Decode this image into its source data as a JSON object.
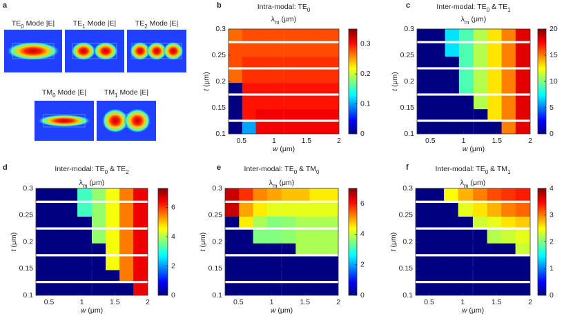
{
  "modes_panel": {
    "label": "a",
    "modes": [
      {
        "title": [
          {
            "text": "TE"
          },
          {
            "text": "0",
            "sub": true
          },
          {
            "text": " Mode |E|"
          }
        ]
      },
      {
        "title": [
          {
            "text": "TE"
          },
          {
            "text": "1",
            "sub": true
          },
          {
            "text": " Mode |E|"
          }
        ]
      },
      {
        "title": [
          {
            "text": "TE"
          },
          {
            "text": "2",
            "sub": true
          },
          {
            "text": " Mode |E|"
          }
        ]
      },
      {
        "title": [
          {
            "text": "TM"
          },
          {
            "text": "0",
            "sub": true
          },
          {
            "text": " Mode |E|"
          }
        ]
      },
      {
        "title": [
          {
            "text": "TM"
          },
          {
            "text": "1",
            "sub": true
          },
          {
            "text": " Mode |E|"
          }
        ]
      }
    ]
  },
  "chart_data": [
    {
      "type": "heatmap",
      "panel": "b",
      "colormap": "jet",
      "title": [
        {
          "text": "Intra-modal: TE"
        },
        {
          "text": "0",
          "sub": true
        }
      ],
      "colorbar_label": [
        {
          "text": "λ"
        },
        {
          "text": "m",
          "sub": true
        },
        {
          "text": " (μm)"
        }
      ],
      "xlabel": [
        {
          "text": "w",
          "italic": true
        },
        {
          "text": " (μm)"
        }
      ],
      "ylabel": [
        {
          "text": "t",
          "italic": true
        },
        {
          "text": " (μm)"
        }
      ],
      "x": [
        0.41,
        0.62,
        0.83,
        1.04,
        1.26,
        1.47,
        1.68,
        1.89
      ],
      "y": [
        0.11,
        0.14,
        0.16,
        0.19,
        0.21,
        0.24,
        0.26,
        0.29
      ],
      "z": [
        [
          0,
          0.1,
          0.31,
          0.31,
          0.31,
          0.31,
          0.31,
          0.31
        ],
        [
          0,
          0.3,
          0.31,
          0.31,
          0.31,
          0.31,
          0.31,
          0.31
        ],
        [
          0,
          0.3,
          0.3,
          0.3,
          0.3,
          0.3,
          0.3,
          0.3
        ],
        [
          0,
          0.3,
          0.3,
          0.3,
          0.3,
          0.3,
          0.3,
          0.3
        ],
        [
          0.27,
          0.29,
          0.29,
          0.29,
          0.29,
          0.29,
          0.29,
          0.29
        ],
        [
          0.28,
          0.29,
          0.29,
          0.29,
          0.29,
          0.29,
          0.29,
          0.29
        ],
        [
          0.28,
          0.28,
          0.28,
          0.28,
          0.28,
          0.28,
          0.28,
          0.28
        ],
        [
          0.27,
          0.28,
          0.28,
          0.28,
          0.28,
          0.28,
          0.28,
          0.28
        ]
      ],
      "xlim": [
        0.3,
        2
      ],
      "ylim": [
        0.1,
        0.3
      ],
      "xticks": [
        0.5,
        1,
        1.5,
        2
      ],
      "yticks": [
        0.1,
        0.15,
        0.2,
        0.25,
        0.3
      ],
      "clim": [
        0,
        0.35
      ],
      "cticks": [
        0,
        0.1,
        0.2,
        0.3
      ]
    },
    {
      "type": "heatmap",
      "panel": "c",
      "colormap": "jet",
      "title": [
        {
          "text": "Inter-modal: TE"
        },
        {
          "text": "0",
          "sub": true
        },
        {
          "text": " & TE"
        },
        {
          "text": "1",
          "sub": true
        }
      ],
      "colorbar_label": [
        {
          "text": "λ"
        },
        {
          "text": "m",
          "sub": true
        },
        {
          "text": " (μm)"
        }
      ],
      "xlabel": [
        {
          "text": "w",
          "italic": true
        },
        {
          "text": " (μm)"
        }
      ],
      "ylabel": [
        {
          "text": "t",
          "italic": true
        },
        {
          "text": " (μm)"
        }
      ],
      "x": [
        0.41,
        0.62,
        0.83,
        1.04,
        1.26,
        1.47,
        1.68,
        1.89
      ],
      "y": [
        0.11,
        0.14,
        0.16,
        0.19,
        0.21,
        0.24,
        0.26,
        0.29
      ],
      "z": [
        [
          0,
          0,
          0,
          0,
          0,
          0,
          15,
          18
        ],
        [
          0,
          0,
          0,
          0,
          0,
          13,
          15,
          18
        ],
        [
          0,
          0,
          0,
          0,
          11,
          13,
          15,
          18
        ],
        [
          0,
          0,
          0,
          9,
          11,
          13,
          15,
          18
        ],
        [
          0,
          0,
          0,
          9,
          11,
          13,
          15,
          18
        ],
        [
          0,
          0,
          0,
          9,
          11,
          13,
          15,
          18
        ],
        [
          0,
          0,
          7,
          9,
          11,
          13,
          15,
          18
        ],
        [
          0,
          0,
          7,
          9,
          11,
          13,
          15,
          18
        ]
      ],
      "xlim": [
        0.3,
        2
      ],
      "ylim": [
        0.1,
        0.3
      ],
      "xticks": [
        0.5,
        1,
        1.5,
        2
      ],
      "yticks": [
        0.1,
        0.15,
        0.2,
        0.25,
        0.3
      ],
      "clim": [
        0,
        20
      ],
      "cticks": [
        0,
        5,
        10,
        15,
        20
      ]
    },
    {
      "type": "heatmap",
      "panel": "d",
      "colormap": "jet",
      "title": [
        {
          "text": "Inter-modal: TE"
        },
        {
          "text": "0",
          "sub": true
        },
        {
          "text": " & TE"
        },
        {
          "text": "2",
          "sub": true
        }
      ],
      "colorbar_label": [
        {
          "text": "λ"
        },
        {
          "text": "m",
          "sub": true
        },
        {
          "text": " (μm)"
        }
      ],
      "xlabel": [
        {
          "text": "w",
          "italic": true
        },
        {
          "text": " (μm)"
        }
      ],
      "ylabel": [
        {
          "text": "t",
          "italic": true
        },
        {
          "text": " (μm)"
        }
      ],
      "x": [
        0.41,
        0.62,
        0.83,
        1.04,
        1.26,
        1.47,
        1.68,
        1.89
      ],
      "y": [
        0.11,
        0.14,
        0.16,
        0.19,
        0.21,
        0.24,
        0.26,
        0.29
      ],
      "z": [
        [
          0,
          0,
          0,
          0,
          0,
          0,
          0,
          6.5
        ],
        [
          0,
          0,
          0,
          0,
          0,
          0,
          5.5,
          6.5
        ],
        [
          0,
          0,
          0,
          0,
          0,
          4.5,
          5.5,
          6.5
        ],
        [
          0,
          0,
          0,
          0,
          0,
          4.5,
          5.5,
          6.5
        ],
        [
          0,
          0,
          0,
          0,
          3.8,
          4.5,
          5.5,
          6.5
        ],
        [
          0,
          0,
          0,
          0,
          3.8,
          4.5,
          5.5,
          6.5
        ],
        [
          0,
          0,
          0,
          3.2,
          3.8,
          4.5,
          5.5,
          6.5
        ],
        [
          0,
          0,
          0,
          3.2,
          3.8,
          4.5,
          5.5,
          6.5
        ]
      ],
      "xlim": [
        0.3,
        2
      ],
      "ylim": [
        0.1,
        0.3
      ],
      "xticks": [
        0.5,
        1,
        1.5,
        2
      ],
      "yticks": [
        0.1,
        0.15,
        0.2,
        0.25,
        0.3
      ],
      "clim": [
        0,
        7.3
      ],
      "cticks": [
        0,
        2,
        4,
        6
      ]
    },
    {
      "type": "heatmap",
      "panel": "e",
      "colormap": "jet",
      "title": [
        {
          "text": "Inter-modal: TE"
        },
        {
          "text": "0",
          "sub": true
        },
        {
          "text": " & TM"
        },
        {
          "text": "0",
          "sub": true
        }
      ],
      "colorbar_label": [
        {
          "text": "λ"
        },
        {
          "text": "m",
          "sub": true
        },
        {
          "text": " (μm)"
        }
      ],
      "xlabel": [
        {
          "text": "w",
          "italic": true
        },
        {
          "text": " (μm)"
        }
      ],
      "ylabel": [
        {
          "text": "t",
          "italic": true
        },
        {
          "text": " (μm)"
        }
      ],
      "x": [
        0.41,
        0.62,
        0.83,
        1.04,
        1.26,
        1.47,
        1.68,
        1.89
      ],
      "y": [
        0.11,
        0.14,
        0.16,
        0.19,
        0.21,
        0.24,
        0.26,
        0.29
      ],
      "z": [
        [
          0,
          0,
          0,
          0,
          0,
          0,
          0,
          0
        ],
        [
          0,
          0,
          0,
          0,
          0,
          0,
          0,
          0
        ],
        [
          0,
          0,
          0,
          0,
          0,
          0,
          0,
          0
        ],
        [
          0,
          0,
          0,
          0,
          0,
          3.8,
          3.8,
          3.8
        ],
        [
          0,
          0,
          3.5,
          3.5,
          3.6,
          3.8,
          3.8,
          3.8
        ],
        [
          0,
          4.5,
          3.8,
          3.5,
          3.6,
          3.8,
          3.8,
          3.8
        ],
        [
          6.5,
          5,
          4.5,
          4.2,
          4.2,
          4.2,
          4.2,
          4.2
        ],
        [
          6.5,
          5.8,
          5.2,
          5,
          4.8,
          4.8,
          4.5,
          4.5
        ]
      ],
      "xlim": [
        0.3,
        2
      ],
      "ylim": [
        0.1,
        0.3
      ],
      "xticks": [
        0.5,
        1,
        1.5,
        2
      ],
      "yticks": [
        0.1,
        0.15,
        0.2,
        0.25,
        0.3
      ],
      "clim": [
        0,
        7
      ],
      "cticks": [
        0,
        2,
        4,
        6
      ]
    },
    {
      "type": "heatmap",
      "panel": "f",
      "colormap": "jet",
      "title": [
        {
          "text": "Inter-modal: TE"
        },
        {
          "text": "0",
          "sub": true
        },
        {
          "text": " & TM"
        },
        {
          "text": "1",
          "sub": true
        }
      ],
      "colorbar_label": [
        {
          "text": "λ"
        },
        {
          "text": "m",
          "sub": true
        },
        {
          "text": " (μm)"
        }
      ],
      "xlabel": [
        {
          "text": "w",
          "italic": true
        },
        {
          "text": " (μm)"
        }
      ],
      "ylabel": [
        {
          "text": "t",
          "italic": true
        },
        {
          "text": " (μm)"
        }
      ],
      "x": [
        0.41,
        0.62,
        0.83,
        1.04,
        1.26,
        1.47,
        1.68,
        1.89
      ],
      "y": [
        0.11,
        0.14,
        0.16,
        0.19,
        0.21,
        0.24,
        0.26,
        0.29
      ],
      "z": [
        [
          0,
          0,
          0,
          0,
          0,
          0,
          0,
          0
        ],
        [
          0,
          0,
          0,
          0,
          0,
          0,
          0,
          0
        ],
        [
          0,
          0,
          0,
          0,
          0,
          0,
          0,
          0
        ],
        [
          0,
          0,
          0,
          0,
          0,
          0,
          0,
          2.3
        ],
        [
          0,
          0,
          0,
          0,
          0,
          2.2,
          2.3,
          2.4
        ],
        [
          0,
          0,
          0,
          0,
          2.3,
          2.4,
          2.6,
          2.7
        ],
        [
          0,
          0,
          0,
          2.4,
          2.6,
          2.8,
          3,
          3.1
        ],
        [
          0,
          0,
          2.5,
          2.8,
          3,
          3.2,
          3.3,
          3.4
        ]
      ],
      "xlim": [
        0.3,
        2
      ],
      "ylim": [
        0.1,
        0.3
      ],
      "xticks": [
        0.5,
        1,
        1.5,
        2
      ],
      "yticks": [
        0.1,
        0.15,
        0.2,
        0.25,
        0.3
      ],
      "clim": [
        0,
        4
      ],
      "cticks": [
        0,
        1,
        2,
        3,
        4
      ]
    }
  ]
}
